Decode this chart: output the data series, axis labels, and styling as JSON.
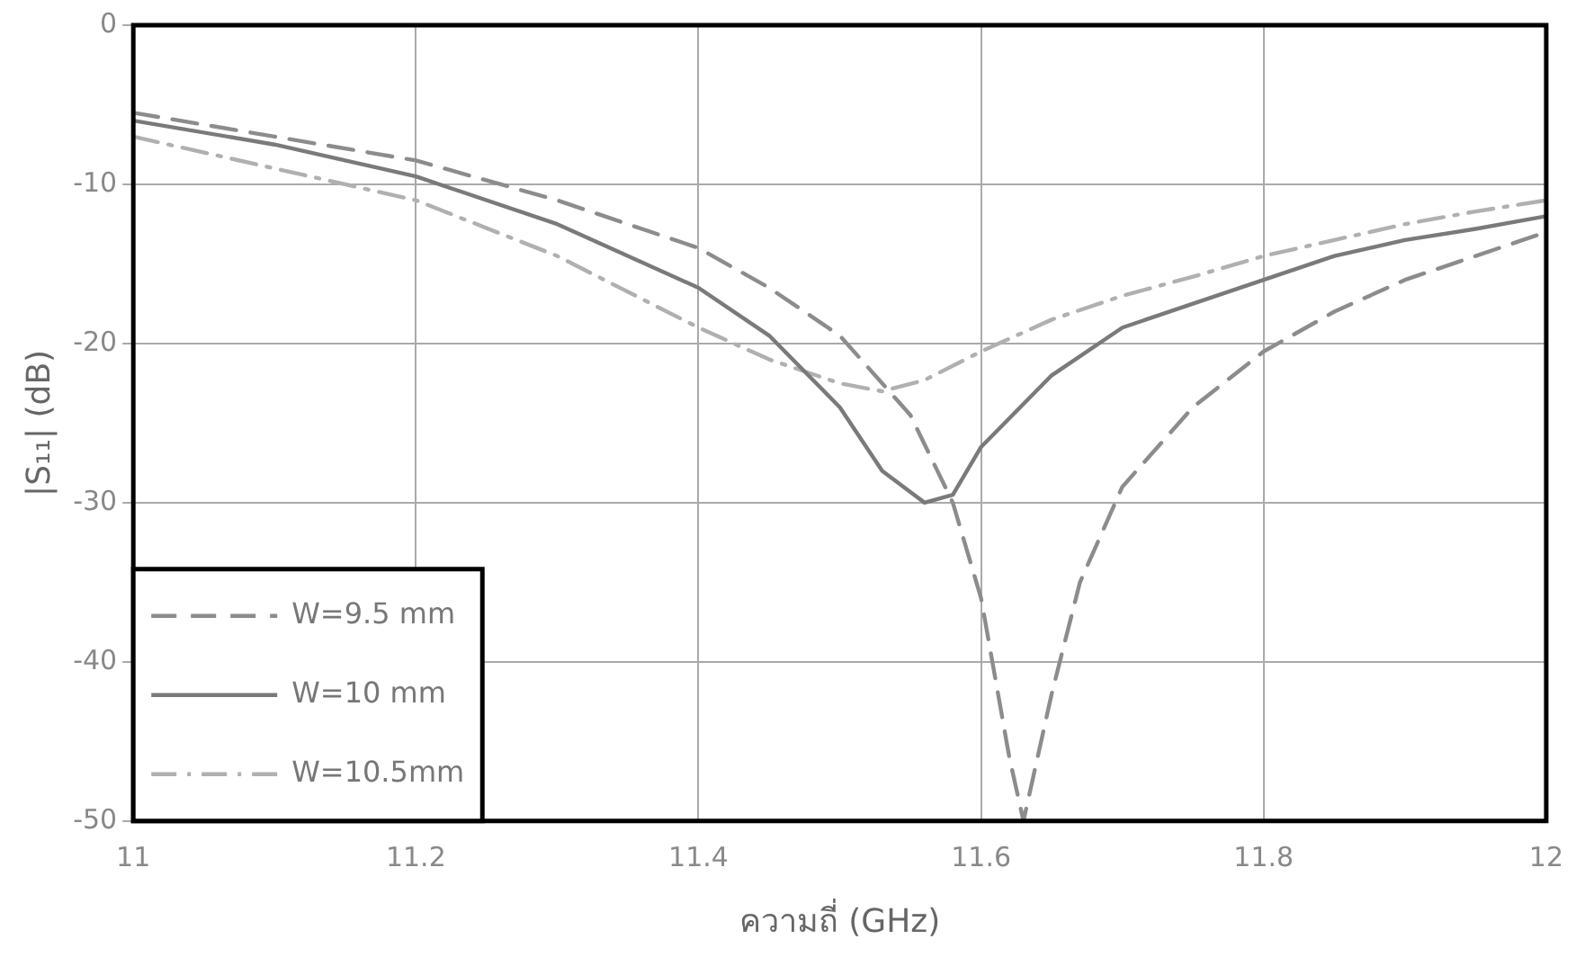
{
  "chart_data": {
    "type": "line",
    "xlabel": "ความถี่ (GHz)",
    "ylabel": "|S₁₁| (dB)",
    "xlim": [
      11,
      12
    ],
    "xticks": [
      11,
      11.2,
      11.4,
      11.6,
      11.8,
      12
    ],
    "ylim": [
      -50,
      0
    ],
    "yticks": [
      0,
      -10,
      -20,
      -30,
      -40,
      -50
    ],
    "grid": true,
    "legend": "bottom left",
    "marker": "none",
    "series": [
      {
        "name": "W=9.5 mm",
        "color": "#8c8c8c",
        "line_style": "dashed",
        "x": [
          11,
          11.1,
          11.2,
          11.3,
          11.4,
          11.45,
          11.5,
          11.55,
          11.58,
          11.6,
          11.61,
          11.62,
          11.63,
          11.64,
          11.65,
          11.67,
          11.7,
          11.75,
          11.8,
          11.85,
          11.9,
          11.95,
          12
        ],
        "values": [
          -5.5,
          -7,
          -8.5,
          -11,
          -14,
          -16.5,
          -19.5,
          -24.5,
          -30,
          -36,
          -41,
          -46,
          -50,
          -46,
          -42,
          -35,
          -29,
          -24,
          -20.5,
          -18,
          -16,
          -14.5,
          -13
        ]
      },
      {
        "name": "W=10 mm",
        "color": "#7a7a7a",
        "line_style": "solid",
        "x": [
          11,
          11.1,
          11.2,
          11.3,
          11.4,
          11.45,
          11.5,
          11.53,
          11.56,
          11.58,
          11.6,
          11.65,
          11.7,
          11.75,
          11.8,
          11.85,
          11.9,
          11.95,
          12
        ],
        "values": [
          -6,
          -7.5,
          -9.5,
          -12.5,
          -16.5,
          -19.5,
          -24,
          -28,
          -30,
          -29.5,
          -26.5,
          -22,
          -19,
          -17.5,
          -16,
          -14.5,
          -13.5,
          -12.8,
          -12
        ]
      },
      {
        "name": "W=10.5mm",
        "color": "#b0b0b0",
        "line_style": "dashdot",
        "x": [
          11,
          11.1,
          11.2,
          11.3,
          11.4,
          11.45,
          11.5,
          11.53,
          11.56,
          11.6,
          11.65,
          11.7,
          11.75,
          11.8,
          11.85,
          11.9,
          11.95,
          12
        ],
        "values": [
          -7,
          -9,
          -11,
          -14.5,
          -19,
          -21,
          -22.5,
          -23,
          -22.3,
          -20.5,
          -18.5,
          -17,
          -15.8,
          -14.5,
          -13.5,
          -12.5,
          -11.7,
          -11
        ]
      }
    ]
  }
}
